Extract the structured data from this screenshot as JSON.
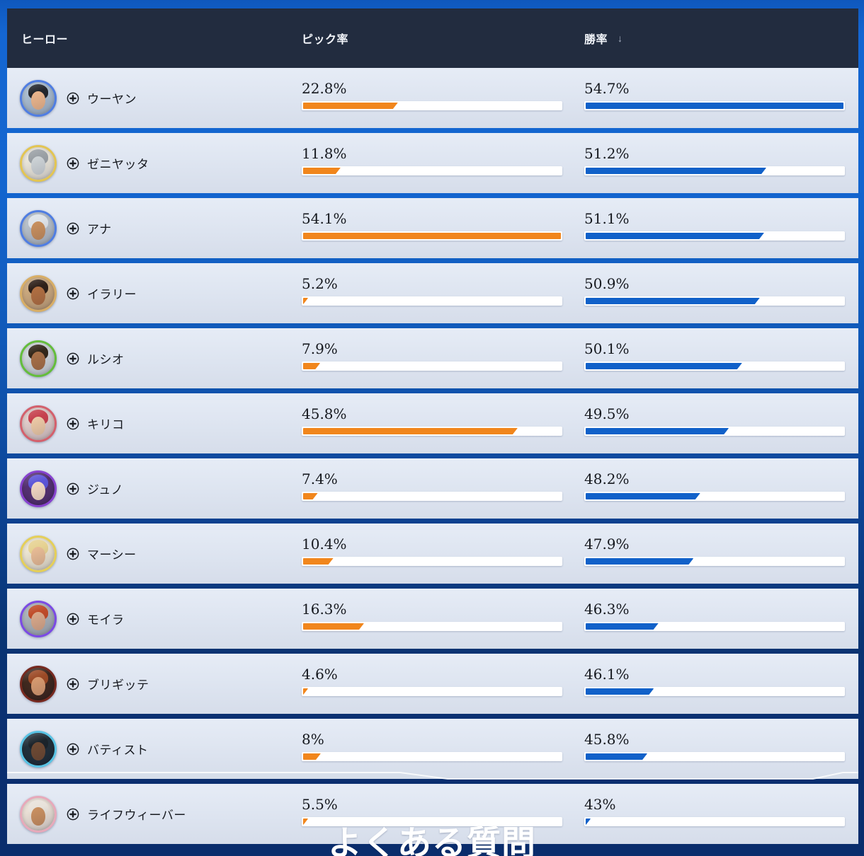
{
  "header": {
    "hero_column": "ヒーロー",
    "pick_column": "ピック率",
    "win_column": "勝率",
    "sort_icon": "↓",
    "sorted_by": "勝率 descending"
  },
  "footer": {
    "faq_heading": "よくある質問"
  },
  "colors": {
    "pick_fill": "#f1861c",
    "win_fill": "#1161c9",
    "header_bg": "#222c3f",
    "row_bg": "#dde4f0",
    "page_top": "#1466d2",
    "page_bottom": "#0a2d6c"
  },
  "chart_data": {
    "type": "bar",
    "title": "ヒーロー ピック率 / 勝率",
    "categories": [
      "ウーヤン",
      "ゼニヤッタ",
      "アナ",
      "イラリー",
      "ルシオ",
      "キリコ",
      "ジュノ",
      "マーシー",
      "モイラ",
      "ブリギッテ",
      "バティスト",
      "ライフウィーバー"
    ],
    "series": [
      {
        "name": "ピック率",
        "unit": "%",
        "color": "#f1861c",
        "values": [
          22.8,
          11.8,
          54.1,
          5.2,
          7.9,
          45.8,
          7.4,
          10.4,
          16.3,
          4.6,
          8,
          5.5
        ],
        "bar_scale": {
          "min": 4.6,
          "max": 54.1,
          "note": "fill width min-max normalized per column"
        }
      },
      {
        "name": "勝率",
        "unit": "%",
        "color": "#1161c9",
        "values": [
          54.7,
          51.2,
          51.1,
          50.9,
          50.1,
          49.5,
          48.2,
          47.9,
          46.3,
          46.1,
          45.8,
          43
        ],
        "bar_scale": {
          "min": 43,
          "max": 54.7,
          "note": "fill width min-max normalized per column"
        }
      }
    ],
    "legend_position": "none",
    "grid": false
  },
  "rows": [
    {
      "name": "ウーヤン",
      "pick_label": "22.8%",
      "pick": 22.8,
      "win_label": "54.7%",
      "win": 54.7,
      "avatar": {
        "ring": "#4f7de2",
        "bg": "#a9bccf",
        "hair": "#23262c",
        "skin": "#eab58c"
      }
    },
    {
      "name": "ゼニヤッタ",
      "pick_label": "11.8%",
      "pick": 11.8,
      "win_label": "51.2%",
      "win": 51.2,
      "avatar": {
        "ring": "#e3c552",
        "bg": "#e9e5da",
        "hair": "#9aa0a5",
        "skin": "#cdd3d6"
      }
    },
    {
      "name": "アナ",
      "pick_label": "54.1%",
      "pick": 54.1,
      "win_label": "51.1%",
      "win": 51.1,
      "avatar": {
        "ring": "#4f7de2",
        "bg": "#b6bfc9",
        "hair": "#dde2e8",
        "skin": "#c78f5e"
      }
    },
    {
      "name": "イラリー",
      "pick_label": "5.2%",
      "pick": 5.2,
      "win_label": "50.9%",
      "win": 50.9,
      "avatar": {
        "ring": "#d8ae66",
        "bg": "#caa87e",
        "hair": "#2e2019",
        "skin": "#b06f42"
      }
    },
    {
      "name": "ルシオ",
      "pick_label": "7.9%",
      "pick": 7.9,
      "win_label": "50.1%",
      "win": 50.1,
      "avatar": {
        "ring": "#64bd3c",
        "bg": "#cfd6dc",
        "hair": "#33271a",
        "skin": "#a77048"
      }
    },
    {
      "name": "キリコ",
      "pick_label": "45.8%",
      "pick": 45.8,
      "win_label": "49.5%",
      "win": 49.5,
      "avatar": {
        "ring": "#d4606c",
        "bg": "#e0ccca",
        "hair": "#c6414e",
        "skin": "#ecc9a6"
      }
    },
    {
      "name": "ジュノ",
      "pick_label": "7.4%",
      "pick": 7.4,
      "win_label": "48.2%",
      "win": 48.2,
      "avatar": {
        "ring": "#8742cf",
        "bg": "#563173",
        "hair": "#5d55d8",
        "skin": "#f2d7c3"
      }
    },
    {
      "name": "マーシー",
      "pick_label": "10.4%",
      "pick": 10.4,
      "win_label": "47.9%",
      "win": 47.9,
      "avatar": {
        "ring": "#e5cf58",
        "bg": "#ece5d2",
        "hair": "#e6d292",
        "skin": "#e7bb95"
      }
    },
    {
      "name": "モイラ",
      "pick_label": "16.3%",
      "pick": 16.3,
      "win_label": "46.3%",
      "win": 46.3,
      "avatar": {
        "ring": "#7b4ae4",
        "bg": "#aab2b9",
        "hair": "#bf4b28",
        "skin": "#d8a88a"
      }
    },
    {
      "name": "ブリギッテ",
      "pick_label": "4.6%",
      "pick": 4.6,
      "win_label": "46.1%",
      "win": 46.1,
      "avatar": {
        "ring": "#77291f",
        "bg": "#40291f",
        "hair": "#9c4a26",
        "skin": "#d69a70"
      }
    },
    {
      "name": "バティスト",
      "pick_label": "8%",
      "pick": 8,
      "win_label": "45.8%",
      "win": 45.8,
      "decor": true,
      "avatar": {
        "ring": "#59c3e4",
        "bg": "#22303a",
        "hair": "#1b242b",
        "skin": "#6e4a33"
      }
    },
    {
      "name": "ライフウィーバー",
      "pick_label": "5.5%",
      "pick": 5.5,
      "win_label": "43%",
      "win": 43,
      "avatar": {
        "ring": "#e7a9ba",
        "bg": "#e9dfd5",
        "hair": "#e8e2da",
        "skin": "#c88f60"
      }
    }
  ]
}
